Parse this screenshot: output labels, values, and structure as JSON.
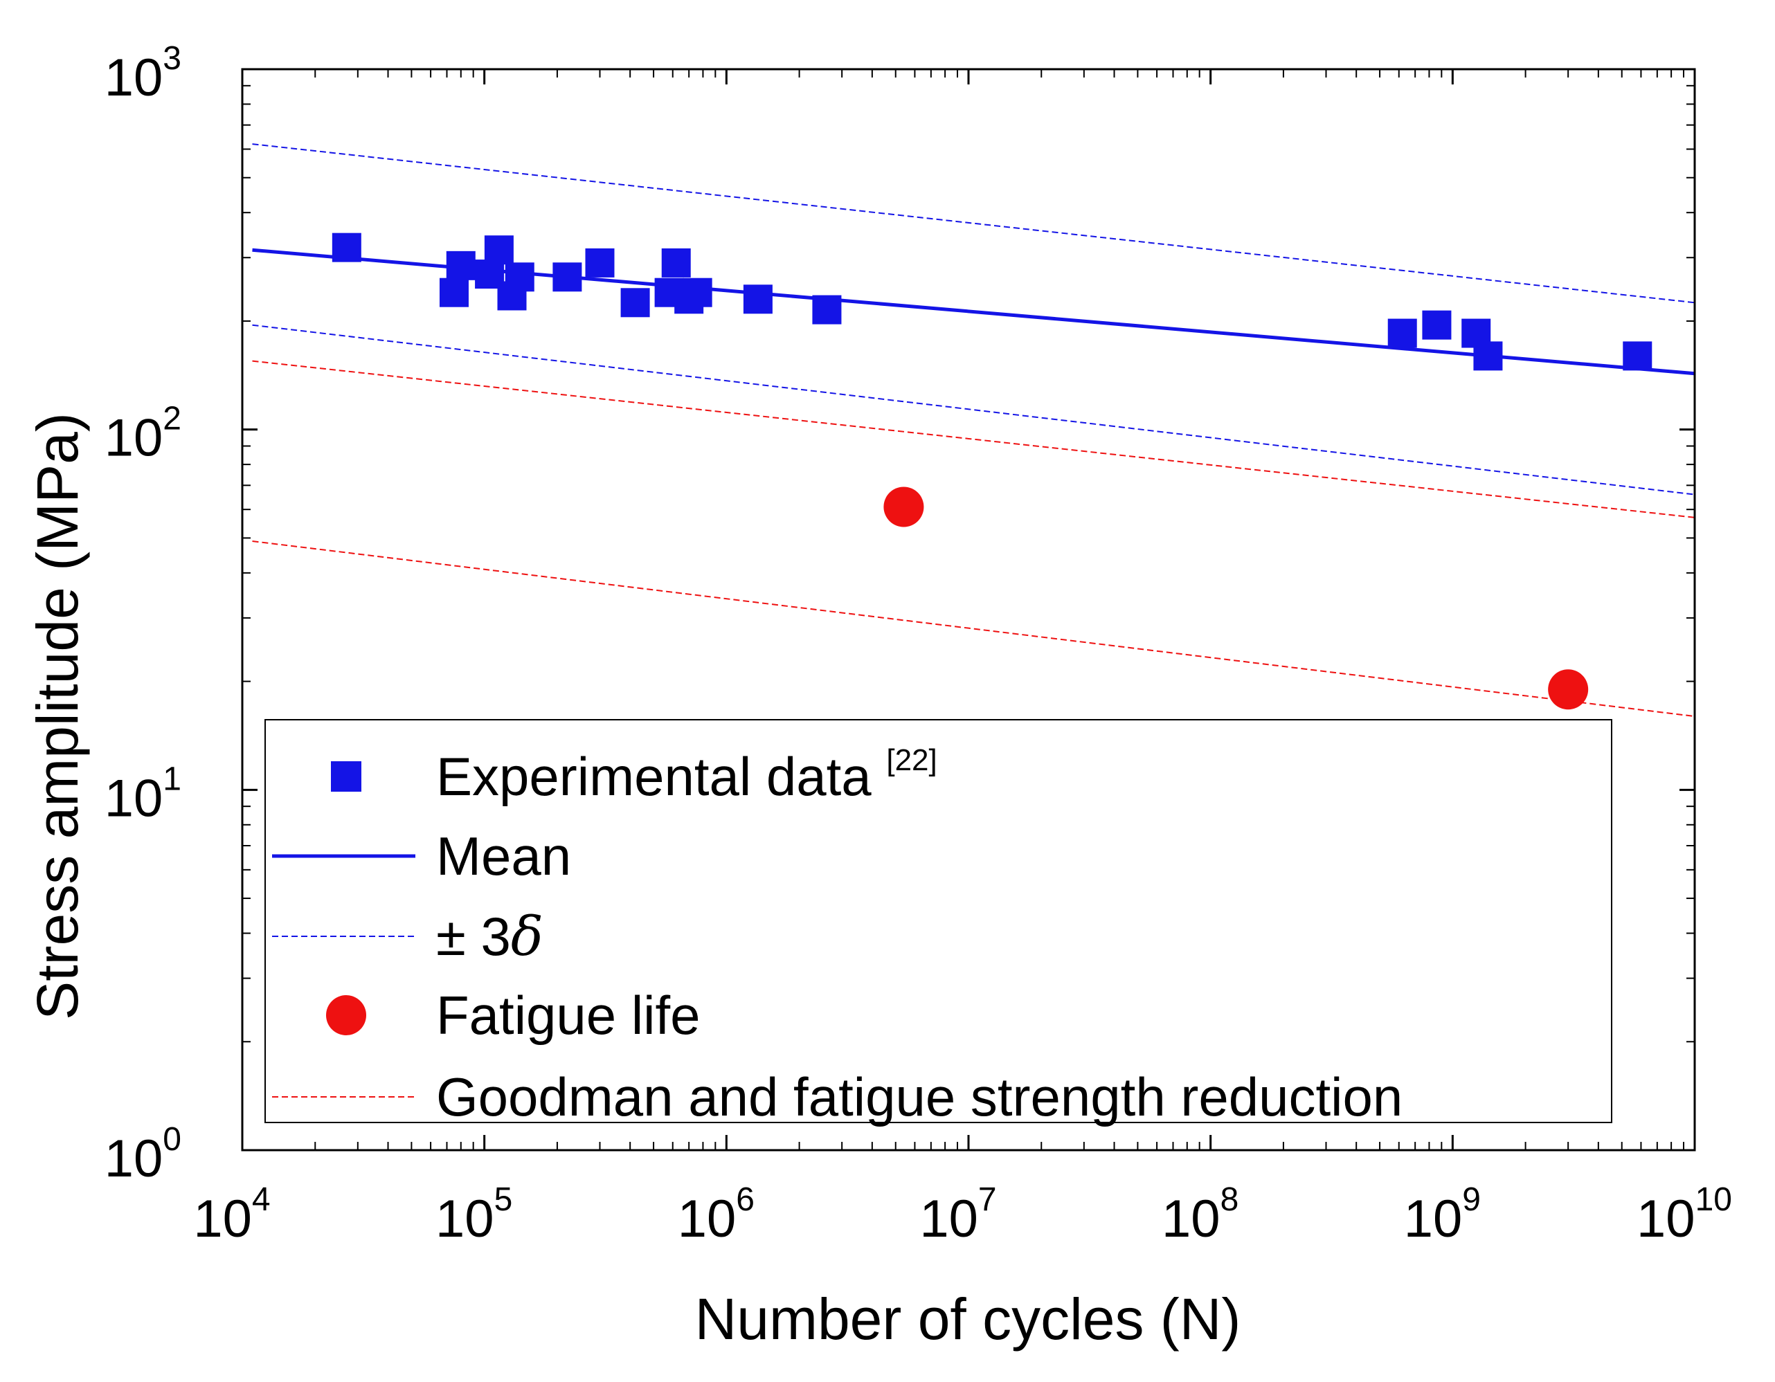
{
  "chart_data": {
    "type": "scatter",
    "xscale": "log",
    "yscale": "log",
    "xlim": [
      10000,
      10000000000
    ],
    "ylim": [
      1,
      1000
    ],
    "xlabel": "Number of cycles (N)",
    "ylabel": "Stress amplitude (MPa)",
    "x_ticks": [
      {
        "base": "10",
        "exp": "4",
        "value": 10000
      },
      {
        "base": "10",
        "exp": "5",
        "value": 100000
      },
      {
        "base": "10",
        "exp": "6",
        "value": 1000000
      },
      {
        "base": "10",
        "exp": "7",
        "value": 10000000
      },
      {
        "base": "10",
        "exp": "8",
        "value": 100000000
      },
      {
        "base": "10",
        "exp": "9",
        "value": 1000000000
      },
      {
        "base": "10",
        "exp": "10",
        "value": 10000000000
      }
    ],
    "y_ticks": [
      {
        "base": "10",
        "exp": "0",
        "value": 1
      },
      {
        "base": "10",
        "exp": "1",
        "value": 10
      },
      {
        "base": "10",
        "exp": "2",
        "value": 100
      },
      {
        "base": "10",
        "exp": "3",
        "value": 1000
      }
    ],
    "series": [
      {
        "name": "Experimental data",
        "legend_superscript": "[22]",
        "kind": "markers",
        "marker": "square",
        "color": "#1414E6",
        "points": [
          [
            27000,
            320
          ],
          [
            75000,
            240
          ],
          [
            80000,
            285
          ],
          [
            105000,
            270
          ],
          [
            115000,
            315
          ],
          [
            130000,
            235
          ],
          [
            140000,
            265
          ],
          [
            220000,
            265
          ],
          [
            300000,
            290
          ],
          [
            420000,
            225
          ],
          [
            580000,
            240
          ],
          [
            620000,
            290
          ],
          [
            700000,
            230
          ],
          [
            760000,
            240
          ],
          [
            1350000,
            230
          ],
          [
            2600000,
            215
          ],
          [
            620000000,
            185
          ],
          [
            860000000,
            195
          ],
          [
            1250000000,
            185
          ],
          [
            1400000000,
            160
          ],
          [
            5800000000,
            160
          ]
        ]
      },
      {
        "name": "Mean",
        "kind": "line",
        "style": "solid",
        "color": "#1414E6",
        "points": [
          [
            11000,
            315
          ],
          [
            10000000000,
            143
          ]
        ]
      },
      {
        "name": "± 3δ",
        "legend_prefix": "± 3",
        "legend_symbol": "δ",
        "kind": "line",
        "style": "dashed",
        "color": "#1414E6",
        "lines": [
          [
            [
              11000,
              620
            ],
            [
              10000000000,
              225
            ]
          ],
          [
            [
              11000,
              195
            ],
            [
              10000000000,
              66
            ]
          ]
        ]
      },
      {
        "name": "Fatigue life",
        "kind": "markers",
        "marker": "circle",
        "color": "#EE1111",
        "points": [
          [
            5400000,
            61
          ],
          [
            3000000000,
            19
          ]
        ]
      },
      {
        "name": "Goodman and fatigue strength reduction",
        "kind": "line",
        "style": "dashed",
        "color": "#EE1111",
        "lines": [
          [
            [
              11000,
              155
            ],
            [
              10000000000,
              57
            ]
          ],
          [
            [
              11000,
              49
            ],
            [
              10000000000,
              16
            ]
          ]
        ]
      }
    ],
    "legend": {
      "placement": "bottom-left inside plot"
    }
  }
}
